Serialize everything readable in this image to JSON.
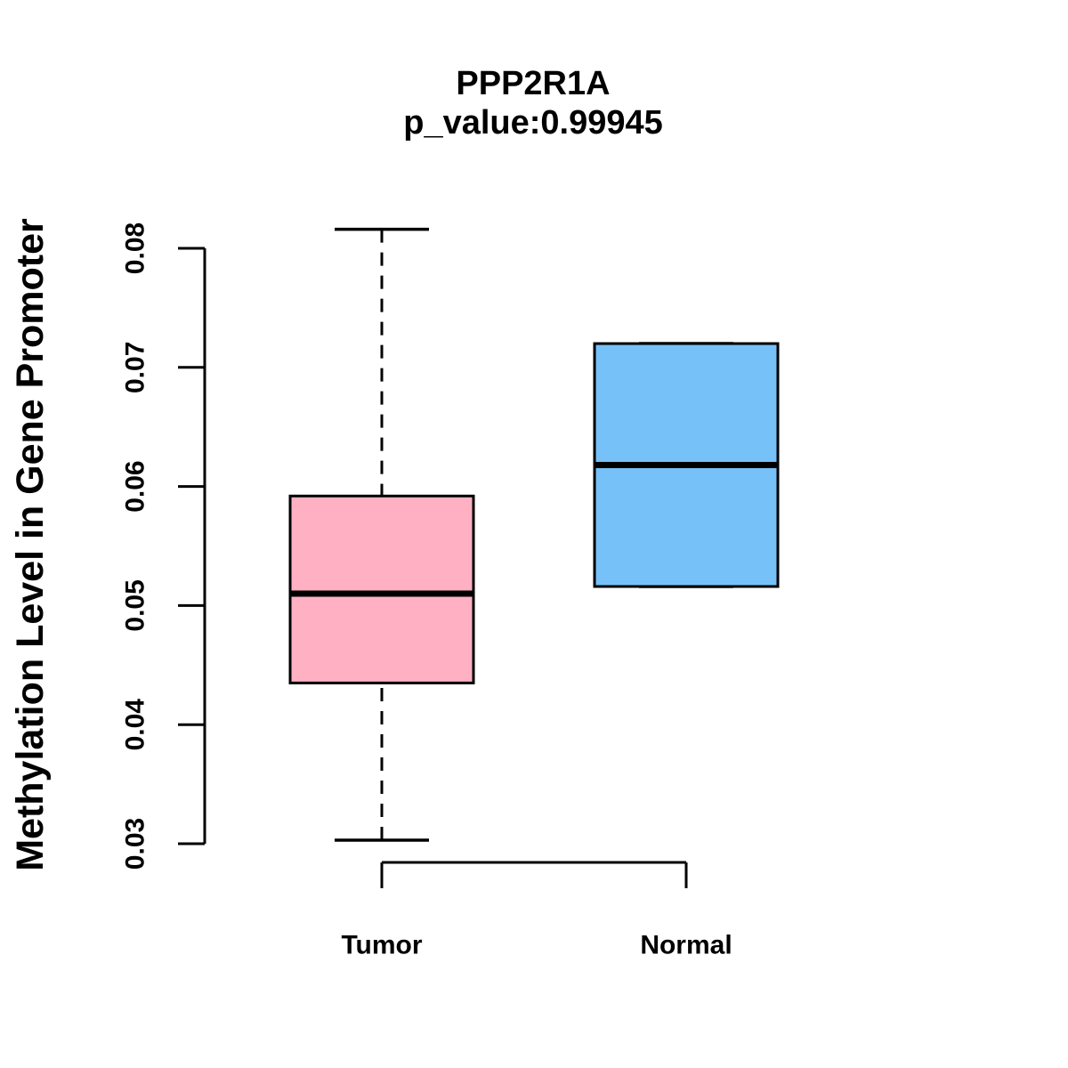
{
  "figure": {
    "background_color": "#FFFFFF",
    "line_color": "#000000"
  },
  "chart_data": {
    "type": "boxplot",
    "title": "PPP2R1A",
    "subtitle": "p_value:0.99945",
    "ylabel": "Methylation Level in Gene Promoter",
    "xlabel": "",
    "ylim": [
      0.03,
      0.08
    ],
    "grid": false,
    "yticks": [
      {
        "value": 0.03,
        "label": "0.03"
      },
      {
        "value": 0.04,
        "label": "0.04"
      },
      {
        "value": 0.05,
        "label": "0.05"
      },
      {
        "value": 0.06,
        "label": "0.06"
      },
      {
        "value": 0.07,
        "label": "0.07"
      },
      {
        "value": 0.08,
        "label": "0.08"
      }
    ],
    "groups": [
      {
        "label": "Tumor",
        "fill_color": "#FFB0C3",
        "stats": {
          "whisker_low": 0.0303,
          "q1": 0.0435,
          "median": 0.051,
          "q3": 0.0592,
          "whisker_high": 0.0816
        }
      },
      {
        "label": "Normal",
        "fill_color": "#76C1F7",
        "stats": {
          "whisker_low": 0.0516,
          "q1": 0.0516,
          "median": 0.0618,
          "q3": 0.072,
          "whisker_high": 0.072
        }
      }
    ]
  }
}
